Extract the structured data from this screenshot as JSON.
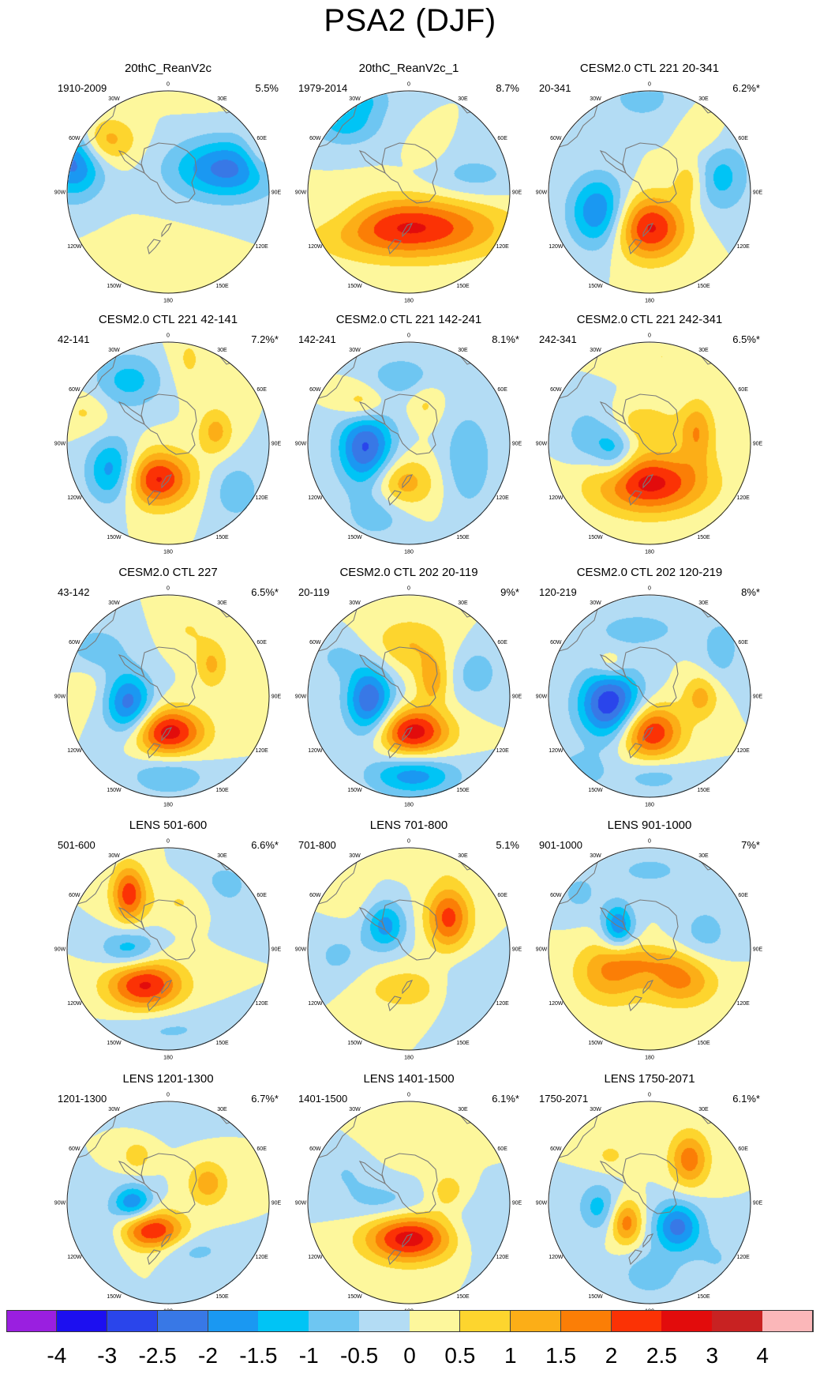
{
  "title": "PSA2 (DJF)",
  "colors": {
    "bins": [
      "#9a1fe0",
      "#1c0ff0",
      "#2a45eb",
      "#3878e6",
      "#1a98f2",
      "#00c4f5",
      "#6ec6f2",
      "#b3dcf4",
      "#fdf79c",
      "#fdd52e",
      "#fcae17",
      "#fb7e06",
      "#fb3205",
      "#e20c0c",
      "#c82222",
      "#fbb7b9"
    ],
    "land": "#7a7a7a"
  },
  "colorbar": {
    "labels": [
      "-4",
      "-3",
      "-2.5",
      "-2",
      "-1.5",
      "-1",
      "-0.5",
      "0",
      "0.5",
      "1",
      "1.5",
      "2",
      "2.5",
      "3",
      "4"
    ]
  },
  "axis_labels": {
    "top": "0",
    "bottom": "180",
    "right": [
      "30E",
      "60E",
      "90E",
      "120E",
      "150E"
    ],
    "left": [
      "30W",
      "60W",
      "90W",
      "120W",
      "150W"
    ]
  },
  "panels": [
    {
      "title": "20thC_ReanV2c",
      "period": "1910-2009",
      "variance": "5.5%",
      "blobs": [
        [
          -85,
          -65,
          1.6,
          40,
          30
        ],
        [
          -120,
          -42,
          -2.4,
          38,
          46
        ],
        [
          75,
          -30,
          -2.2,
          70,
          38
        ],
        [
          118,
          -50,
          1.0,
          22,
          35
        ],
        [
          40,
          -140,
          0.7,
          55,
          25
        ],
        [
          -20,
          80,
          0.4,
          60,
          30
        ]
      ]
    },
    {
      "title": "20thC_ReanV2c_1",
      "period": "1979-2014",
      "variance": "8.7%",
      "blobs": [
        [
          0,
          45,
          2.6,
          110,
          38
        ],
        [
          -80,
          -90,
          -1.3,
          45,
          30
        ],
        [
          -50,
          -120,
          -0.7,
          30,
          20
        ],
        [
          80,
          -20,
          -0.7,
          60,
          30
        ],
        [
          25,
          -50,
          0.3,
          25,
          25
        ],
        [
          -90,
          30,
          -0.6,
          50,
          30
        ]
      ]
    },
    {
      "title": "CESM2.0 CTL 221 20-341",
      "period": "20-341",
      "variance": "6.2%*",
      "blobs": [
        [
          0,
          45,
          2.6,
          45,
          40
        ],
        [
          -65,
          25,
          -2.1,
          36,
          45
        ],
        [
          90,
          -20,
          -1.2,
          35,
          45
        ],
        [
          -10,
          -120,
          -0.8,
          40,
          28
        ],
        [
          70,
          -70,
          0.5,
          25,
          30
        ],
        [
          50,
          -15,
          0.9,
          20,
          28
        ]
      ]
    },
    {
      "title": "CESM2.0 CTL 221 42-141",
      "period": "42-141",
      "variance": "7.2%*",
      "blobs": [
        [
          -15,
          45,
          2.6,
          45,
          35
        ],
        [
          -70,
          35,
          -2.0,
          32,
          40
        ],
        [
          -50,
          -80,
          -1.2,
          45,
          35
        ],
        [
          60,
          -15,
          1.2,
          22,
          30
        ],
        [
          25,
          -105,
          0.6,
          25,
          40
        ],
        [
          85,
          60,
          -0.8,
          35,
          40
        ],
        [
          -105,
          -40,
          0.6,
          30,
          25
        ]
      ]
    },
    {
      "title": "CESM2.0 CTL 221 142-241",
      "period": "142-241",
      "variance": "8.1%*",
      "blobs": [
        [
          -55,
          5,
          -2.6,
          35,
          50
        ],
        [
          -10,
          50,
          1.4,
          40,
          32
        ],
        [
          -60,
          -50,
          1.2,
          30,
          25
        ],
        [
          20,
          -50,
          0.6,
          20,
          25
        ],
        [
          -10,
          -85,
          -0.9,
          40,
          25
        ],
        [
          75,
          20,
          -1.0,
          30,
          60
        ],
        [
          -40,
          90,
          -0.8,
          40,
          30
        ]
      ]
    },
    {
      "title": "CESM2.0 CTL 221 242-341",
      "period": "242-341",
      "variance": "6.5%*",
      "blobs": [
        [
          0,
          50,
          2.7,
          70,
          38
        ],
        [
          -45,
          10,
          -1.4,
          25,
          35
        ],
        [
          60,
          -15,
          1.4,
          22,
          40
        ],
        [
          -10,
          -25,
          0.9,
          45,
          25
        ],
        [
          15,
          -110,
          0.5,
          60,
          20
        ],
        [
          -80,
          -10,
          -0.8,
          30,
          40
        ]
      ]
    },
    {
      "title": "CESM2.0 CTL 227",
      "period": "43-142",
      "variance": "6.5%*",
      "blobs": [
        [
          0,
          45,
          2.8,
          45,
          30
        ],
        [
          -50,
          10,
          -2.3,
          30,
          40
        ],
        [
          -90,
          -60,
          -0.8,
          40,
          30
        ],
        [
          55,
          -40,
          1.1,
          20,
          30
        ],
        [
          0,
          100,
          -1.0,
          50,
          25
        ],
        [
          25,
          -85,
          0.5,
          30,
          30
        ],
        [
          -105,
          -10,
          0.4,
          25,
          30
        ]
      ]
    },
    {
      "title": "CESM2.0 CTL 202 20-119",
      "period": "20-119",
      "variance": "9%*",
      "blobs": [
        [
          5,
          45,
          2.8,
          45,
          30
        ],
        [
          -50,
          5,
          -2.5,
          30,
          45
        ],
        [
          5,
          100,
          -1.8,
          55,
          25
        ],
        [
          0,
          -65,
          1.0,
          50,
          35
        ],
        [
          30,
          -20,
          1.2,
          20,
          30
        ],
        [
          85,
          -30,
          -0.8,
          30,
          35
        ],
        [
          -90,
          -50,
          -0.6,
          30,
          25
        ]
      ]
    },
    {
      "title": "CESM2.0 CTL 202 120-219",
      "period": "120-219",
      "variance": "8%*",
      "blobs": [
        [
          0,
          45,
          2.6,
          40,
          35
        ],
        [
          -50,
          10,
          -3.0,
          40,
          45
        ],
        [
          65,
          0,
          1.2,
          22,
          28
        ],
        [
          -50,
          -40,
          0.8,
          22,
          20
        ],
        [
          -15,
          -85,
          -0.8,
          55,
          22
        ],
        [
          90,
          -60,
          -0.8,
          25,
          40
        ],
        [
          5,
          100,
          -0.8,
          45,
          22
        ],
        [
          -90,
          95,
          -0.8,
          35,
          25
        ]
      ]
    },
    {
      "title": "LENS 501-600",
      "period": "501-600",
      "variance": "6.6%*",
      "blobs": [
        [
          -30,
          45,
          2.6,
          48,
          32
        ],
        [
          -50,
          0,
          -1.4,
          35,
          25
        ],
        [
          -50,
          -70,
          2.3,
          22,
          36
        ],
        [
          70,
          -80,
          -0.7,
          40,
          35
        ],
        [
          20,
          -60,
          0.6,
          40,
          25
        ],
        [
          0,
          100,
          -0.6,
          70,
          25
        ]
      ]
    },
    {
      "title": "LENS 701-800",
      "period": "701-800",
      "variance": "5.1%",
      "blobs": [
        [
          -30,
          -30,
          -1.7,
          25,
          30
        ],
        [
          50,
          -40,
          2.2,
          28,
          40
        ],
        [
          0,
          50,
          0.8,
          70,
          30
        ],
        [
          70,
          50,
          -0.7,
          40,
          40
        ],
        [
          -90,
          10,
          -0.6,
          40,
          40
        ],
        [
          30,
          -110,
          0.3,
          50,
          20
        ],
        [
          -80,
          -70,
          0.4,
          30,
          30
        ]
      ]
    },
    {
      "title": "LENS 901-1000",
      "period": "901-1000",
      "variance": "7%*",
      "blobs": [
        [
          -50,
          30,
          1.5,
          45,
          40
        ],
        [
          40,
          40,
          1.6,
          45,
          32
        ],
        [
          -40,
          -30,
          -2.0,
          20,
          28
        ],
        [
          70,
          -20,
          -0.7,
          35,
          40
        ],
        [
          0,
          -100,
          -0.6,
          60,
          25
        ],
        [
          -90,
          -70,
          -0.6,
          30,
          30
        ],
        [
          0,
          15,
          0.7,
          50,
          20
        ]
      ]
    },
    {
      "title": "LENS 1201-1300",
      "period": "1201-1300",
      "variance": "6.7%*",
      "blobs": [
        [
          -20,
          35,
          2.5,
          40,
          25
        ],
        [
          -45,
          0,
          -2.0,
          25,
          22
        ],
        [
          50,
          -25,
          1.3,
          25,
          28
        ],
        [
          -40,
          -60,
          0.8,
          20,
          20
        ],
        [
          30,
          60,
          -0.7,
          45,
          20
        ],
        [
          -85,
          40,
          -0.6,
          30,
          35
        ],
        [
          10,
          -110,
          -0.5,
          40,
          20
        ]
      ]
    },
    {
      "title": "LENS 1401-1500",
      "period": "1401-1500",
      "variance": "6.1%*",
      "blobs": [
        [
          0,
          45,
          2.8,
          55,
          30
        ],
        [
          -30,
          0,
          -0.7,
          50,
          25
        ],
        [
          50,
          -15,
          0.8,
          25,
          25
        ],
        [
          0,
          -80,
          0.5,
          60,
          30
        ],
        [
          85,
          30,
          -0.5,
          40,
          40
        ],
        [
          -80,
          -40,
          -0.5,
          40,
          35
        ]
      ]
    },
    {
      "title": "LENS 1750-2071",
      "period": "1750-2071",
      "variance": "6.1%*",
      "blobs": [
        [
          -30,
          25,
          1.8,
          20,
          28
        ],
        [
          35,
          30,
          -2.2,
          30,
          32
        ],
        [
          -65,
          5,
          -1.2,
          25,
          30
        ],
        [
          50,
          -55,
          1.8,
          25,
          35
        ],
        [
          -50,
          -60,
          0.6,
          25,
          20
        ],
        [
          0,
          90,
          -0.8,
          40,
          30
        ],
        [
          85,
          70,
          -0.5,
          30,
          30
        ]
      ]
    }
  ]
}
